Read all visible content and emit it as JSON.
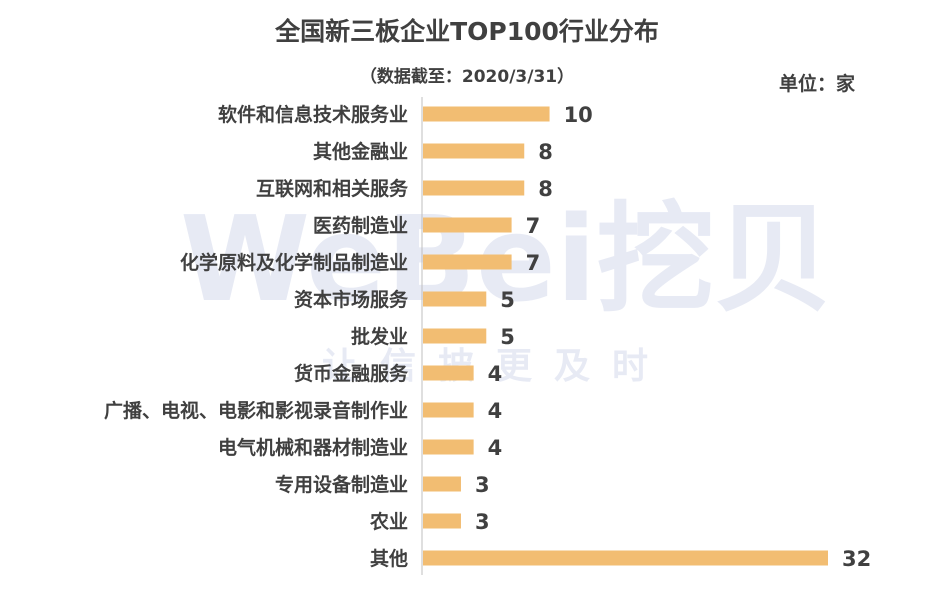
{
  "watermark": {
    "brand": "WeBei挖贝",
    "tagline": "让信披更及时"
  },
  "chart_data": {
    "type": "bar",
    "orientation": "horizontal",
    "title": "全国新三板企业TOP100行业分布",
    "subtitle": "（数据截至：2020/3/31）",
    "unit_label": "单位：家",
    "categories": [
      "软件和信息技术服务业",
      "其他金融业",
      "互联网和相关服务",
      "医药制造业",
      "化学原料及化学制品制造业",
      "资本市场服务",
      "批发业",
      "货币金融服务",
      "广播、电视、电影和影视录音制作业",
      "电气机械和器材制造业",
      "专用设备制造业",
      "农业",
      "其他"
    ],
    "values": [
      10,
      8,
      8,
      7,
      7,
      5,
      5,
      4,
      4,
      4,
      3,
      3,
      32
    ],
    "bar_color": "#f2bd72",
    "xlim": [
      0,
      32
    ],
    "grid": false,
    "legend": "none"
  }
}
